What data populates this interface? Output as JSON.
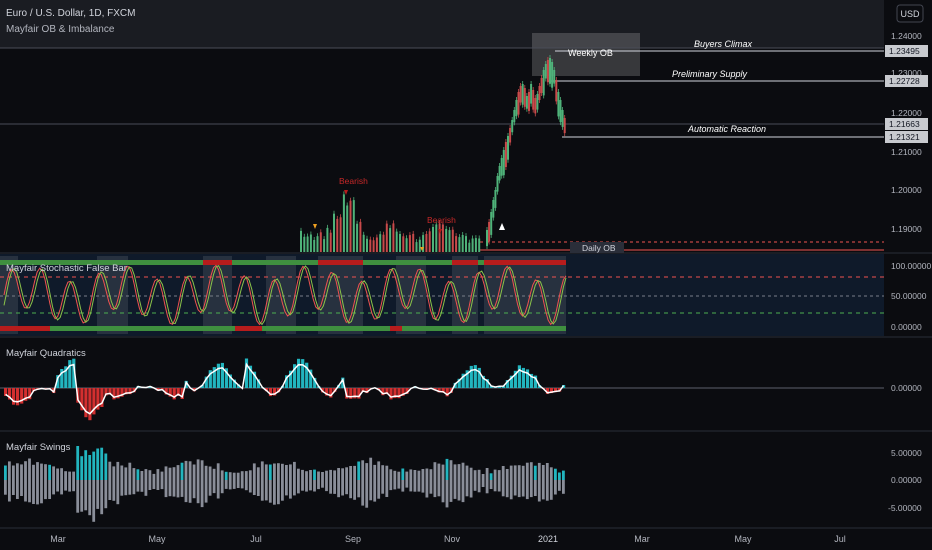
{
  "header": {
    "symbol_title": "Euro / U.S. Dollar, 1D, FXCM",
    "indicator_title": "Mayfair OB & Imbalance",
    "currency_button": "USD"
  },
  "price_axis": {
    "ticks": [
      "1.24000",
      "1.23000",
      "1.22000",
      "1.21000",
      "1.20000",
      "1.19000"
    ],
    "price_labels": [
      {
        "text": "1.23495",
        "price": 1.23495
      },
      {
        "text": "1.22728",
        "price": 1.22728
      },
      {
        "text": "1.21663",
        "price": 1.21663
      },
      {
        "text": "1.21321",
        "price": 1.21321
      }
    ]
  },
  "annotations": {
    "weekly_ob": "Weekly OB",
    "buyers_climax": "Buyers Climax",
    "preliminary_supply": "Preliminary Supply",
    "automatic_reaction": "Automatic Reaction",
    "daily_ob": "Daily OB",
    "bearish_1": "Bearish",
    "bearish_2": "Bearish"
  },
  "panes": {
    "stochastic": {
      "title": "Mayfair Stochastic False Bar",
      "ticks": [
        "100.00000",
        "50.00000",
        "0.00000"
      ]
    },
    "quadratics": {
      "title": "Mayfair Quadratics",
      "ticks": [
        "0.00000"
      ]
    },
    "swings": {
      "title": "Mayfair Swings",
      "ticks": [
        "5.00000",
        "0.00000",
        "-5.00000"
      ]
    }
  },
  "time_axis": {
    "labels": [
      "Mar",
      "May",
      "Jul",
      "Sep",
      "Nov",
      "2021",
      "Mar",
      "May",
      "Jul"
    ]
  },
  "colors": {
    "background": "#0b0c10",
    "bull": "#26a69a",
    "bear": "#ef5350",
    "teal_bar": "#22b5bf",
    "red_bar": "#d32f2f",
    "green_band": "#4caf50",
    "red_band": "#b71c1c",
    "grey_bar": "#8a8e99"
  }
}
